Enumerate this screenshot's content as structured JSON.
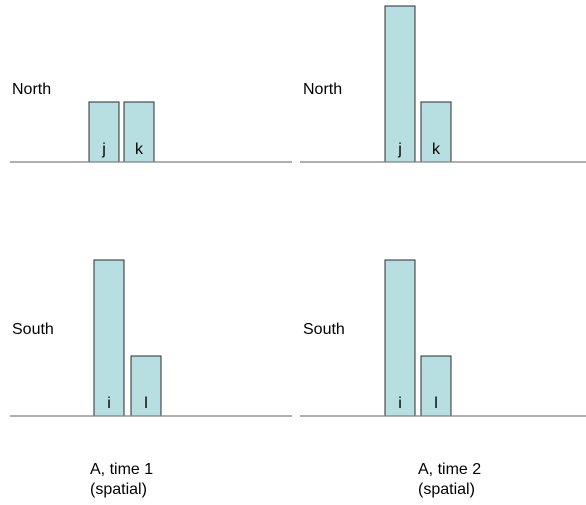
{
  "colors": {
    "bar_fill": "#b7dee0",
    "bar_stroke": "#2b2b2b",
    "baseline": "#808080"
  },
  "panels": [
    {
      "region": "North",
      "baseline_label": "",
      "bars": [
        {
          "label": "j",
          "height": 1
        },
        {
          "label": "k",
          "height": 1
        }
      ]
    },
    {
      "region": "North",
      "bars": [
        {
          "label": "j",
          "height": 2.6
        },
        {
          "label": "k",
          "height": 1
        }
      ]
    },
    {
      "region": "South",
      "bars": [
        {
          "label": "i",
          "height": 2.6
        },
        {
          "label": "l",
          "height": 1
        }
      ]
    },
    {
      "region": "South",
      "bars": [
        {
          "label": "i",
          "height": 2.6
        },
        {
          "label": "l",
          "height": 1
        }
      ]
    }
  ],
  "captions": [
    {
      "line1": "A, time 1",
      "line2": "(spatial)"
    },
    {
      "line1": "A, time 2",
      "line2": "(spatial)"
    }
  ]
}
